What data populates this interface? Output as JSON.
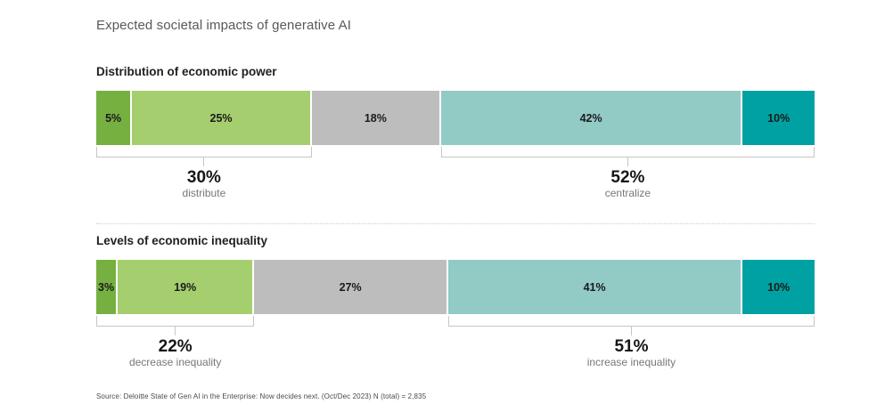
{
  "page": {
    "title": "Expected societal impacts of generative AI",
    "source": "Source: Deloitte State of Gen AI in the Enterprise: Now decides next. (Oct/Dec 2023) N (total) = 2,835"
  },
  "colors": {
    "strong_green": "#76b041",
    "light_green": "#a5ce6e",
    "neutral_gray": "#bcbdbc",
    "light_teal": "#92cac6",
    "strong_teal": "#00a1a3",
    "bracket_gray": "#c6c7c7"
  },
  "chart_data": [
    {
      "type": "bar",
      "orientation": "horizontal-stacked",
      "title": "Distribution of economic power",
      "xlim": [
        0,
        100
      ],
      "unit": "%",
      "segments": [
        {
          "label": "5%",
          "value": 5,
          "color": "#76b041"
        },
        {
          "label": "25%",
          "value": 25,
          "color": "#a5ce6e"
        },
        {
          "label": "18%",
          "value": 18,
          "color": "#bcbdbc"
        },
        {
          "label": "42%",
          "value": 42,
          "color": "#92cac6"
        },
        {
          "label": "10%",
          "value": 10,
          "color": "#00a1a3"
        }
      ],
      "summaries": [
        {
          "pct": "30%",
          "label": "distribute",
          "start": 0,
          "span": 30
        },
        {
          "pct": "52%",
          "label": "centralize",
          "start": 48,
          "span": 52
        }
      ]
    },
    {
      "type": "bar",
      "orientation": "horizontal-stacked",
      "title": "Levels of economic inequality",
      "xlim": [
        0,
        100
      ],
      "unit": "%",
      "segments": [
        {
          "label": "3%",
          "value": 3,
          "color": "#76b041"
        },
        {
          "label": "19%",
          "value": 19,
          "color": "#a5ce6e"
        },
        {
          "label": "27%",
          "value": 27,
          "color": "#bcbdbc"
        },
        {
          "label": "41%",
          "value": 41,
          "color": "#92cac6"
        },
        {
          "label": "10%",
          "value": 10,
          "color": "#00a1a3"
        }
      ],
      "summaries": [
        {
          "pct": "22%",
          "label": "decrease inequality",
          "start": 0,
          "span": 22
        },
        {
          "pct": "51%",
          "label": "increase inequality",
          "start": 49,
          "span": 51
        }
      ]
    }
  ]
}
